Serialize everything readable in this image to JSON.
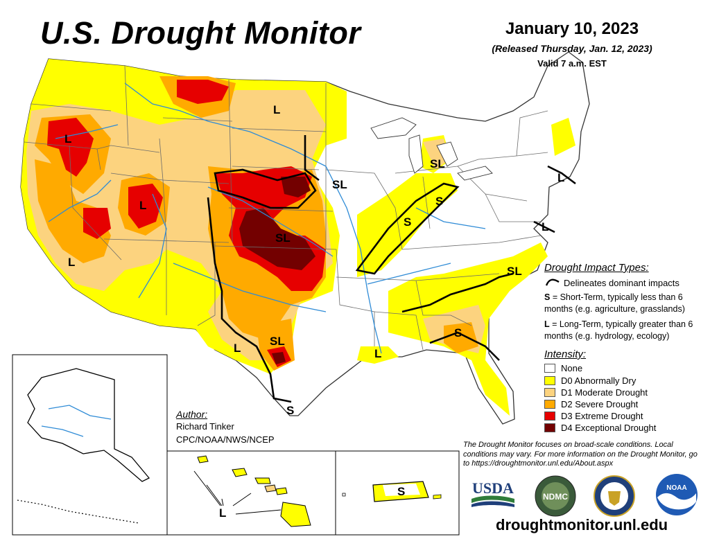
{
  "header": {
    "title": "U.S. Drought Monitor",
    "date": "January 10, 2023",
    "released": "(Released Thursday, Jan. 12, 2023)",
    "valid": "Valid 7 a.m. EST"
  },
  "map_labels": {
    "l_oregon": "L",
    "l_montana": "L",
    "l_nevada": "L",
    "l_california": "L",
    "sl_michigan": "SL",
    "sl_iowa": "SL",
    "s_indiana": "S",
    "s_illinois": "S",
    "sl_kansas": "SL",
    "l_newengland": "L",
    "l_chesapeake": "L",
    "sl_carolina": "SL",
    "s_georgia": "S",
    "sl_texas": "SL",
    "l_westtexas": "L",
    "l_louisiana": "L",
    "s_southtexas": "S",
    "l_hawaii": "L",
    "s_puertorico": "S"
  },
  "impact_types": {
    "heading": "Drought Impact Types:",
    "line_label": "Delineates dominant impacts",
    "s_key": "S",
    "s_text": " = Short-Term, typically less than 6 months (e.g. agriculture, grasslands)",
    "l_key": "L",
    "l_text": " = Long-Term, typically greater than 6 months (e.g. hydrology, ecology)"
  },
  "intensity": {
    "heading": "Intensity:",
    "levels": [
      {
        "label": "None",
        "color": "#ffffff"
      },
      {
        "label": "D0 Abnormally Dry",
        "color": "#ffff00"
      },
      {
        "label": "D1 Moderate Drought",
        "color": "#fcd37f"
      },
      {
        "label": "D2 Severe Drought",
        "color": "#ffaa00"
      },
      {
        "label": "D3 Extreme Drought",
        "color": "#e60000"
      },
      {
        "label": "D4 Exceptional Drought",
        "color": "#730000"
      }
    ]
  },
  "author": {
    "heading": "Author:",
    "name": "Richard Tinker",
    "org": "CPC/NOAA/NWS/NCEP"
  },
  "disclaimer": "The Drought Monitor focuses on broad-scale conditions. Local conditions may vary. For more information on the Drought Monitor, go to https://droughtmonitor.unl.edu/About.aspx",
  "logos": {
    "usda": "USDA",
    "ndmc": "NDMC",
    "noaa": "NOAA"
  },
  "website": "droughtmonitor.unl.edu"
}
